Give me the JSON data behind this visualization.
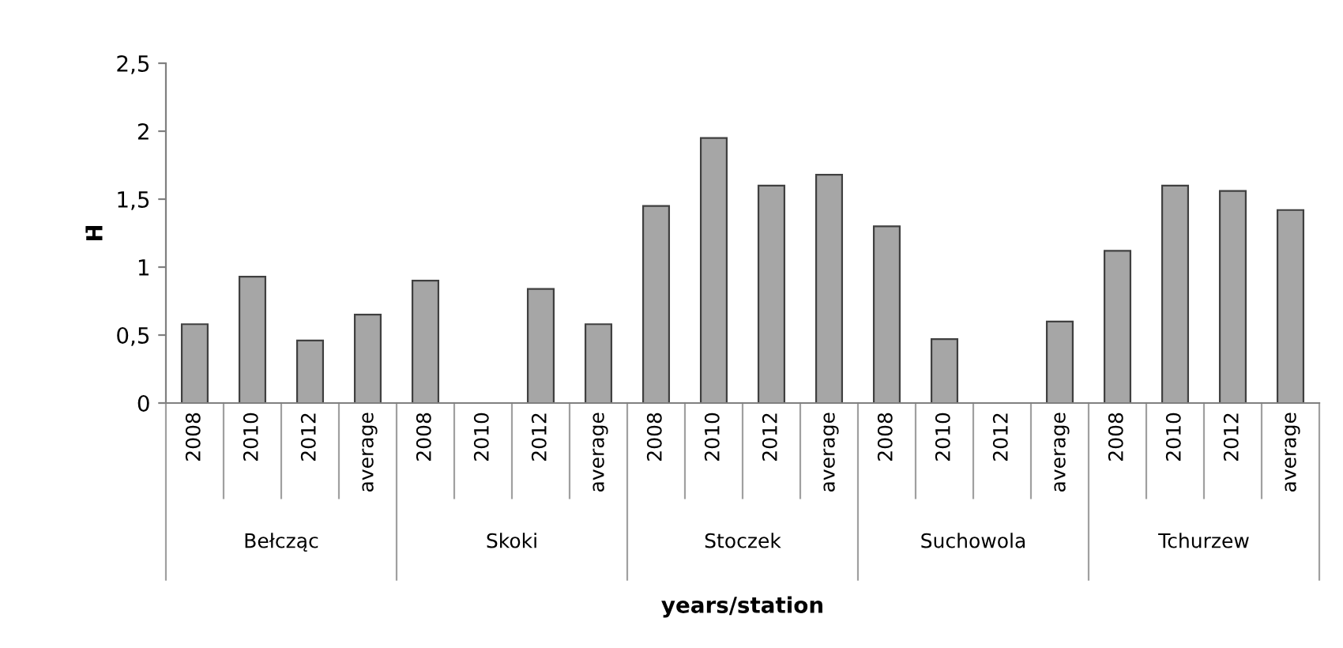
{
  "chart_data": {
    "type": "bar",
    "xlabel": "years/station",
    "ylabel": "H̄",
    "categories": [
      "2008",
      "2010",
      "2012",
      "average",
      "2008",
      "2010",
      "2012",
      "average",
      "2008",
      "2010",
      "2012",
      "average",
      "2008",
      "2010",
      "2012",
      "average",
      "2008",
      "2010",
      "2012",
      "average"
    ],
    "values": [
      0.58,
      0.93,
      0.46,
      0.65,
      0.9,
      null,
      0.84,
      0.58,
      1.45,
      1.95,
      1.6,
      1.68,
      1.3,
      0.47,
      null,
      0.6,
      1.12,
      1.6,
      1.56,
      1.42
    ],
    "color": "#a6a6a6",
    "annotations": [
      "Bełcząc",
      "Skoki",
      "Stoczek",
      "Suchowola",
      "Tchurzew"
    ],
    "ylim": [
      0,
      2.5
    ],
    "yticks": [
      0,
      {
        "value": 0.5,
        "label": "0,5"
      },
      1,
      {
        "value": 1.5,
        "label": "1,5"
      },
      2,
      {
        "value": 2.5,
        "label": "2,5"
      }
    ],
    "grid": false,
    "legend": false
  }
}
